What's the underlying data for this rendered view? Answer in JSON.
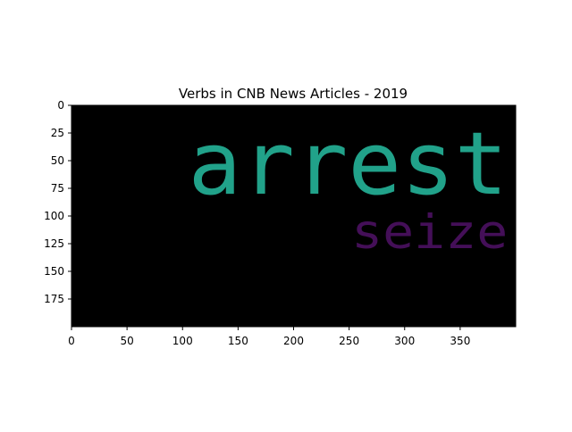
{
  "chart_data": {
    "type": "wordcloud",
    "title": "Verbs in CNB News Articles - 2019",
    "xlabel": "",
    "ylabel": "",
    "xlim": [
      0,
      400
    ],
    "ylim": [
      200,
      0
    ],
    "x_ticks": [
      0,
      50,
      100,
      150,
      200,
      250,
      300,
      350
    ],
    "y_ticks": [
      0,
      25,
      50,
      75,
      100,
      125,
      150,
      175
    ],
    "background": "#000000",
    "words": [
      {
        "text": "arrest",
        "x_start": 105,
        "x_end": 393,
        "baseline_y": 80,
        "font_size": 78,
        "color": "#21a28a"
      },
      {
        "text": "seize",
        "x_start": 252,
        "x_end": 393,
        "baseline_y": 129,
        "font_size": 42,
        "color": "#440f58"
      }
    ]
  }
}
